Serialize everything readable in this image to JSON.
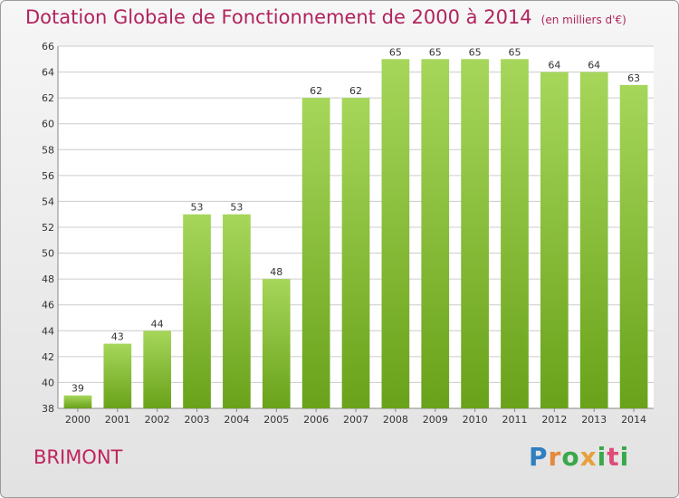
{
  "title": "Dotation Globale de Fonctionnement de 2000 à 2014",
  "unit": "(en milliers d'€)",
  "commune": "BRIMONT",
  "logo": "Proxiti",
  "colors": {
    "title": "#b0245d",
    "bar_light": "#a6d65a",
    "bar_dark": "#69a21a",
    "grid": "#cccccc"
  },
  "chart_data": {
    "type": "bar",
    "title": "Dotation Globale de Fonctionnement de 2000 à 2014",
    "subtitle": "(en milliers d'€)",
    "xlabel": "",
    "ylabel": "",
    "categories": [
      "2000",
      "2001",
      "2002",
      "2003",
      "2004",
      "2005",
      "2006",
      "2007",
      "2008",
      "2009",
      "2010",
      "2011",
      "2012",
      "2013",
      "2014"
    ],
    "values": [
      39,
      43,
      44,
      53,
      53,
      48,
      62,
      62,
      65,
      65,
      65,
      65,
      64,
      64,
      63
    ],
    "ylim": [
      38,
      66
    ],
    "yticks": [
      38,
      40,
      42,
      44,
      46,
      48,
      50,
      52,
      54,
      56,
      58,
      60,
      62,
      64,
      66
    ],
    "grid": true,
    "legend": "none"
  }
}
